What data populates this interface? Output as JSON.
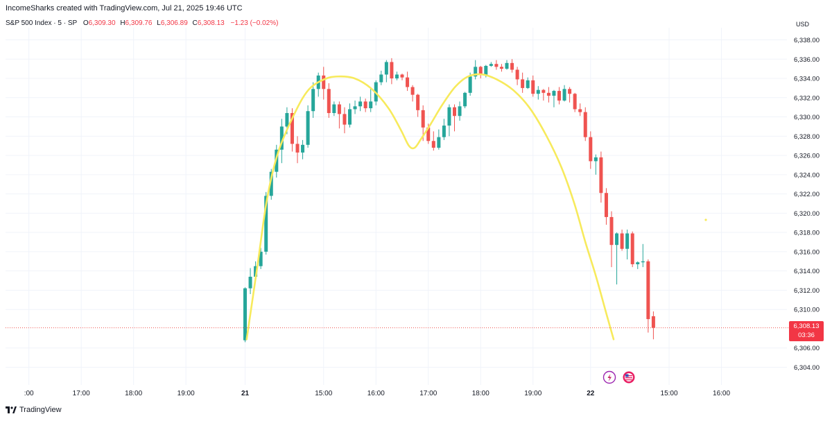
{
  "header": {
    "created_by": "IncomeSharks created with TradingView.com, Jul 21, 2025 19:46 UTC"
  },
  "legend": {
    "symbol": "S&P 500 Index · 5 · SP",
    "open_label": "O",
    "open": "6,309.30",
    "high_label": "H",
    "high": "6,309.76",
    "low_label": "L",
    "low": "6,306.89",
    "close_label": "C",
    "close": "6,308.13",
    "change": "−1.23 (−0.02%)"
  },
  "currency": "USD",
  "last_price": {
    "value": "6,308.13",
    "countdown": "03:36"
  },
  "footer": {
    "brand": "TradingView"
  },
  "colors": {
    "up": "#26a69a",
    "down": "#ef5350",
    "curve": "#f7ea5c",
    "last_price_tag": "#f23645"
  },
  "chart_data": {
    "type": "candlestick",
    "ylim": [
      6302.5,
      6339.5
    ],
    "y_ticks": [
      6338,
      6336,
      6334,
      6332,
      6330,
      6328,
      6326,
      6324,
      6322,
      6320,
      6318,
      6316,
      6314,
      6312,
      6310,
      6306,
      6304
    ],
    "y_tick_labels": [
      "6,338.00",
      "6,336.00",
      "6,334.00",
      "6,332.00",
      "6,330.00",
      "6,328.00",
      "6,326.00",
      "6,324.00",
      "6,322.00",
      "6,320.00",
      "6,318.00",
      "6,316.00",
      "6,314.00",
      "6,312.00",
      "6,310.00",
      "6,306.00",
      "6,304.00"
    ],
    "x_tick_labels": [
      ":00",
      "17:00",
      "18:00",
      "19:00",
      "21",
      "15:00",
      "16:00",
      "17:00",
      "18:00",
      "19:00",
      "22",
      "15:00",
      "16:00"
    ],
    "x_tick_index": [
      -41.3,
      -31.3,
      -21.3,
      -11.3,
      0,
      15,
      25,
      35,
      45,
      55,
      66,
      81,
      91
    ],
    "candles": [
      [
        6306.8,
        6312.2,
        6306.6,
        6312.3
      ],
      [
        6312.2,
        6313.4,
        6311.6,
        6314.3
      ],
      [
        6313.4,
        6314.5,
        6313.0,
        6315.0
      ],
      [
        6314.5,
        6316.0,
        6314.2,
        6316.4
      ],
      [
        6316.0,
        6321.8,
        6315.7,
        6322.2
      ],
      [
        6321.8,
        6324.3,
        6321.4,
        6324.6
      ],
      [
        6324.3,
        6326.6,
        6323.7,
        6327.1
      ],
      [
        6326.6,
        6329.0,
        6325.2,
        6329.8
      ],
      [
        6329.0,
        6330.4,
        6328.2,
        6331.0
      ],
      [
        6330.4,
        6327.2,
        6326.4,
        6330.9
      ],
      [
        6327.2,
        6326.3,
        6325.2,
        6328.0
      ],
      [
        6326.3,
        6327.1,
        6325.6,
        6327.6
      ],
      [
        6327.1,
        6330.6,
        6326.8,
        6331.2
      ],
      [
        6330.6,
        6332.9,
        6329.9,
        6333.6
      ],
      [
        6332.9,
        6334.3,
        6332.1,
        6334.6
      ],
      [
        6334.3,
        6332.9,
        6331.8,
        6335.2
      ],
      [
        6332.9,
        6330.4,
        6329.9,
        6333.5
      ],
      [
        6330.4,
        6331.3,
        6330.1,
        6331.6
      ],
      [
        6331.3,
        6330.3,
        6328.8,
        6331.6
      ],
      [
        6330.3,
        6329.2,
        6328.3,
        6331.0
      ],
      [
        6329.2,
        6330.8,
        6328.9,
        6331.4
      ],
      [
        6330.8,
        6331.1,
        6330.3,
        6331.7
      ],
      [
        6331.1,
        6331.6,
        6330.6,
        6332.1
      ],
      [
        6331.6,
        6330.9,
        6330.5,
        6331.9
      ],
      [
        6330.9,
        6331.6,
        6330.5,
        6333.1
      ],
      [
        6331.6,
        6333.6,
        6331.2,
        6333.8
      ],
      [
        6333.6,
        6334.4,
        6333.3,
        6334.8
      ],
      [
        6334.4,
        6335.7,
        6333.6,
        6335.9
      ],
      [
        6335.7,
        6334.0,
        6333.4,
        6336.1
      ],
      [
        6334.0,
        6334.4,
        6333.8,
        6334.7
      ],
      [
        6334.4,
        6334.1,
        6333.8,
        6334.5
      ],
      [
        6334.1,
        6333.1,
        6332.7,
        6334.7
      ],
      [
        6333.1,
        6332.3,
        6331.6,
        6333.3
      ],
      [
        6332.3,
        6330.7,
        6330.0,
        6332.4
      ],
      [
        6330.7,
        6328.9,
        6327.5,
        6331.2
      ],
      [
        6328.9,
        6327.5,
        6327.2,
        6329.3
      ],
      [
        6327.5,
        6326.8,
        6326.5,
        6328.5
      ],
      [
        6326.8,
        6327.9,
        6326.6,
        6328.7
      ],
      [
        6327.9,
        6329.1,
        6327.6,
        6329.8
      ],
      [
        6329.1,
        6331.0,
        6328.0,
        6331.3
      ],
      [
        6331.0,
        6330.1,
        6328.5,
        6331.3
      ],
      [
        6330.1,
        6331.1,
        6329.6,
        6331.6
      ],
      [
        6331.1,
        6332.5,
        6330.9,
        6332.6
      ],
      [
        6332.5,
        6334.2,
        6332.2,
        6334.6
      ],
      [
        6334.2,
        6335.2,
        6333.9,
        6335.9
      ],
      [
        6335.2,
        6334.4,
        6334.0,
        6335.3
      ],
      [
        6334.4,
        6335.3,
        6334.1,
        6335.4
      ],
      [
        6335.3,
        6335.5,
        6335.2,
        6335.7
      ],
      [
        6335.5,
        6335.2,
        6334.9,
        6335.9
      ],
      [
        6335.2,
        6335.0,
        6334.7,
        6335.5
      ],
      [
        6335.0,
        6335.6,
        6334.9,
        6335.9
      ],
      [
        6335.6,
        6334.9,
        6334.6,
        6336.0
      ],
      [
        6334.9,
        6333.9,
        6333.3,
        6335.2
      ],
      [
        6333.9,
        6333.0,
        6332.5,
        6334.6
      ],
      [
        6333.0,
        6333.8,
        6332.9,
        6334.1
      ],
      [
        6333.8,
        6332.4,
        6332.1,
        6334.3
      ],
      [
        6332.4,
        6332.8,
        6331.8,
        6333.2
      ],
      [
        6332.8,
        6332.5,
        6331.7,
        6332.9
      ],
      [
        6332.5,
        6332.2,
        6331.5,
        6333.1
      ],
      [
        6332.2,
        6332.7,
        6331.0,
        6332.8
      ],
      [
        6332.7,
        6331.7,
        6331.3,
        6333.1
      ],
      [
        6331.7,
        6332.9,
        6331.6,
        6333.3
      ],
      [
        6332.9,
        6332.4,
        6331.5,
        6333.1
      ],
      [
        6332.4,
        6330.8,
        6330.5,
        6332.5
      ],
      [
        6330.8,
        6330.5,
        6330.1,
        6331.4
      ],
      [
        6330.5,
        6327.9,
        6327.5,
        6331.0
      ],
      [
        6327.9,
        6325.4,
        6324.6,
        6328.5
      ],
      [
        6325.4,
        6325.8,
        6324.0,
        6326.1
      ],
      [
        6325.8,
        6322.1,
        6321.1,
        6326.4
      ],
      [
        6322.1,
        6319.6,
        6318.8,
        6322.6
      ],
      [
        6319.6,
        6316.7,
        6314.4,
        6320.2
      ],
      [
        6316.7,
        6317.9,
        6312.6,
        6318.0
      ],
      [
        6317.9,
        6316.3,
        6316.1,
        6318.3
      ],
      [
        6316.3,
        6317.9,
        6315.2,
        6318.3
      ],
      [
        6317.9,
        6314.7,
        6314.4,
        6318.1
      ],
      [
        6314.7,
        6314.9,
        6314.2,
        6315.0
      ],
      [
        6314.9,
        6315.0,
        6314.4,
        6316.8
      ],
      [
        6315.0,
        6309.0,
        6307.6,
        6315.2
      ],
      [
        6309.3,
        6308.1,
        6306.9,
        6309.8
      ]
    ],
    "trend_curve": [
      [
        0.3,
        6306.9
      ],
      [
        2.4,
        6314.7
      ],
      [
        4.2,
        6321.5
      ],
      [
        6.3,
        6326.3
      ],
      [
        9.4,
        6330.3
      ],
      [
        12.1,
        6332.8
      ],
      [
        15.1,
        6333.9
      ],
      [
        17.7,
        6334.2
      ],
      [
        20.9,
        6334.0
      ],
      [
        24.2,
        6332.9
      ],
      [
        27.4,
        6330.9
      ],
      [
        29.8,
        6328.6
      ],
      [
        31.3,
        6327.0
      ],
      [
        32.4,
        6326.8
      ],
      [
        33.6,
        6327.7
      ],
      [
        35.5,
        6329.3
      ],
      [
        37.6,
        6331.2
      ],
      [
        40.1,
        6333.1
      ],
      [
        42.6,
        6334.2
      ],
      [
        45.4,
        6334.4
      ],
      [
        48.4,
        6333.8
      ],
      [
        51.4,
        6332.7
      ],
      [
        54.4,
        6330.9
      ],
      [
        57.5,
        6328.1
      ],
      [
        60.4,
        6324.8
      ],
      [
        62.9,
        6321.0
      ],
      [
        65.0,
        6317.0
      ],
      [
        67.0,
        6313.5
      ],
      [
        69.1,
        6309.4
      ],
      [
        70.4,
        6306.9
      ]
    ]
  }
}
